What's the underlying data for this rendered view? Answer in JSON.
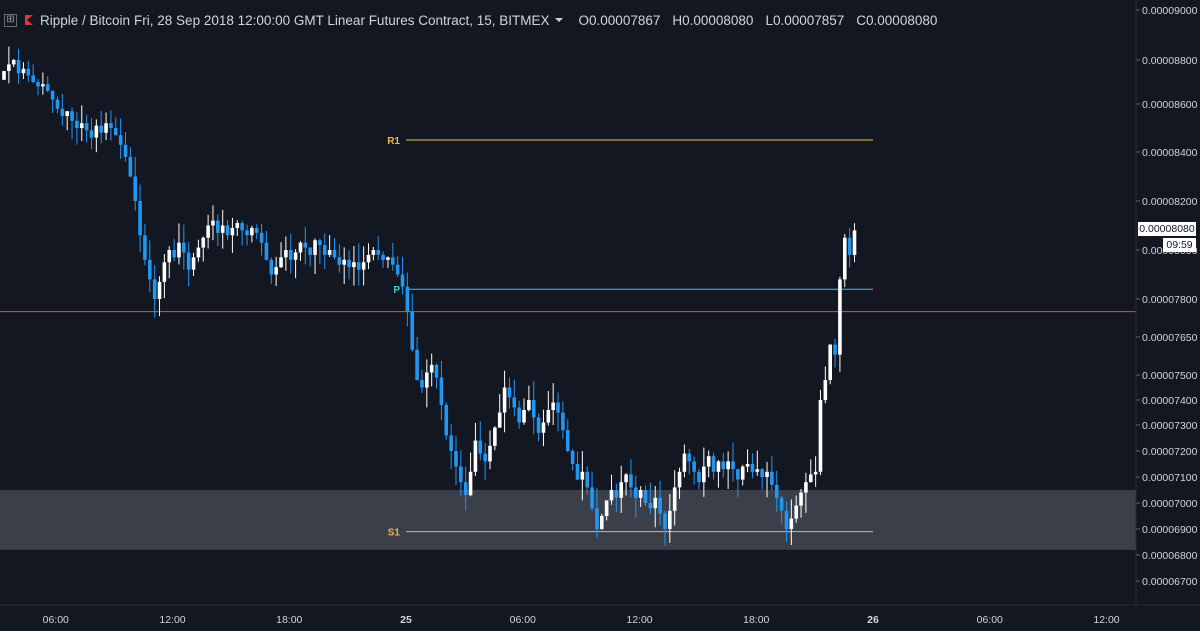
{
  "header": {
    "symbol": "Ripple / Bitcoin",
    "info": "Fri, 28 Sep 2018 12:00:00 GMT Linear Futures Contract, 15, BITMEX",
    "ohlc": [
      {
        "label": "O",
        "value": "0.00007867"
      },
      {
        "label": "H",
        "value": "0.00008080"
      },
      {
        "label": "L",
        "value": "0.00007857"
      },
      {
        "label": "C",
        "value": "0.00008080"
      }
    ]
  },
  "price_tag": {
    "value": "0.00008080",
    "timer": "09:59"
  },
  "colors": {
    "background": "#131722",
    "up": "#ffffff",
    "down": "#2196f3",
    "resistance": "#f0b847",
    "pivot": "#35d0c9",
    "support": "#f0b847",
    "horizontal_line": "#e0532f",
    "zone": "#434651"
  },
  "chart_data": {
    "type": "candlestick",
    "title": "",
    "xlabel": "",
    "ylabel": "",
    "y_axis_ticks": [
      {
        "value": 9e-05,
        "label": "0.00009000"
      },
      {
        "value": 8.8e-05,
        "label": "0.00008800"
      },
      {
        "value": 8.6e-05,
        "label": "0.00008600"
      },
      {
        "value": 8.4e-05,
        "label": "0.00008400"
      },
      {
        "value": 8.2e-05,
        "label": "0.00008200"
      },
      {
        "value": 8e-05,
        "label": "0.00008000"
      },
      {
        "value": 7.8e-05,
        "label": "0.00007800"
      },
      {
        "value": 7.65e-05,
        "label": "0.00007650"
      },
      {
        "value": 7.5e-05,
        "label": "0.00007500"
      },
      {
        "value": 7.4e-05,
        "label": "0.00007400"
      },
      {
        "value": 7.3e-05,
        "label": "0.00007300"
      },
      {
        "value": 7.2e-05,
        "label": "0.00007200"
      },
      {
        "value": 7.1e-05,
        "label": "0.00007100"
      },
      {
        "value": 7e-05,
        "label": "0.00007000"
      },
      {
        "value": 6.9e-05,
        "label": "0.00006900"
      },
      {
        "value": 6.8e-05,
        "label": "0.00006800"
      },
      {
        "value": 6.7e-05,
        "label": "0.00006700"
      }
    ],
    "x_axis_ticks": [
      {
        "hours": 6,
        "label": "06:00",
        "bold": false
      },
      {
        "hours": 12,
        "label": "12:00",
        "bold": false
      },
      {
        "hours": 18,
        "label": "18:00",
        "bold": false
      },
      {
        "hours": 24,
        "label": "25",
        "bold": true
      },
      {
        "hours": 30,
        "label": "06:00",
        "bold": false
      },
      {
        "hours": 36,
        "label": "12:00",
        "bold": false
      },
      {
        "hours": 42,
        "label": "18:00",
        "bold": false
      },
      {
        "hours": 48,
        "label": "26",
        "bold": true
      },
      {
        "hours": 54,
        "label": "06:00",
        "bold": false
      },
      {
        "hours": 60,
        "label": "12:00",
        "bold": false
      }
    ],
    "pivots": [
      {
        "label": "R1",
        "value": 8.45e-05,
        "color": "#f0b847",
        "x_start": 24,
        "x_end": 48
      },
      {
        "label": "P",
        "value": 7.84e-05,
        "color": "#35d0c9",
        "x_start": 24,
        "x_end": 48
      },
      {
        "label": "S1",
        "value": 6.89e-05,
        "color": "#f0b847",
        "x_start": 24,
        "x_end": 48
      }
    ],
    "horizontal_line": {
      "value": 7.75e-05
    },
    "support_zone": {
      "from": 6.82e-05,
      "to": 7.05e-05
    },
    "candles_closes": [
      8.75e-05,
      8.78e-05,
      8.8e-05,
      8.74e-05,
      8.76e-05,
      8.73e-05,
      8.7e-05,
      8.68e-05,
      8.69e-05,
      8.66e-05,
      8.62e-05,
      8.58e-05,
      8.55e-05,
      8.57e-05,
      8.53e-05,
      8.5e-05,
      8.52e-05,
      8.49e-05,
      8.46e-05,
      8.51e-05,
      8.48e-05,
      8.52e-05,
      8.5e-05,
      8.47e-05,
      8.43e-05,
      8.38e-05,
      8.3e-05,
      8.2e-05,
      8.06e-05,
      7.96e-05,
      7.88e-05,
      7.8e-05,
      7.87e-05,
      7.95e-05,
      8e-05,
      7.97e-05,
      8.03e-05,
      7.99e-05,
      7.92e-05,
      7.97e-05,
      8.01e-05,
      8.05e-05,
      8.1e-05,
      8.12e-05,
      8.07e-05,
      8.1e-05,
      8.06e-05,
      8.09e-05,
      8.11e-05,
      8.08e-05,
      8.06e-05,
      8.09e-05,
      8.07e-05,
      8.03e-05,
      7.96e-05,
      7.9e-05,
      7.93e-05,
      7.97e-05,
      8e-05,
      7.96e-05,
      7.99e-05,
      8.03e-05,
      8.01e-05,
      7.98e-05,
      8.04e-05,
      8.02e-05,
      7.98e-05,
      8e-05,
      7.97e-05,
      7.94e-05,
      7.96e-05,
      7.93e-05,
      7.95e-05,
      7.92e-05,
      7.95e-05,
      7.98e-05,
      8e-05,
      7.98e-05,
      7.96e-05,
      7.97e-05,
      7.94e-05,
      7.9e-05,
      7.85e-05,
      7.75e-05,
      7.6e-05,
      7.48e-05,
      7.45e-05,
      7.51e-05,
      7.54e-05,
      7.49e-05,
      7.38e-05,
      7.26e-05,
      7.2e-05,
      7.14e-05,
      7.08e-05,
      7.03e-05,
      7.12e-05,
      7.24e-05,
      7.19e-05,
      7.16e-05,
      7.22e-05,
      7.29e-05,
      7.35e-05,
      7.45e-05,
      7.41e-05,
      7.37e-05,
      7.31e-05,
      7.36e-05,
      7.4e-05,
      7.33e-05,
      7.27e-05,
      7.31e-05,
      7.36e-05,
      7.39e-05,
      7.35e-05,
      7.28e-05,
      7.2e-05,
      7.15e-05,
      7.09e-05,
      7.12e-05,
      7.06e-05,
      6.98e-05,
      6.9e-05,
      6.95e-05,
      7.01e-05,
      7.05e-05,
      7.02e-05,
      7.08e-05,
      7.11e-05,
      7.06e-05,
      7.02e-05,
      7.05e-05,
      7e-05,
      6.98e-05,
      7.02e-05,
      6.96e-05,
      6.9e-05,
      6.97e-05,
      7.06e-05,
      7.12e-05,
      7.19e-05,
      7.16e-05,
      7.12e-05,
      7.08e-05,
      7.14e-05,
      7.18e-05,
      7.12e-05,
      7.16e-05,
      7.13e-05,
      7.16e-05,
      7.13e-05,
      7.09e-05,
      7.14e-05,
      7.15e-05,
      7.12e-05,
      7.13e-05,
      7.1e-05,
      7.12e-05,
      7.07e-05,
      7.02e-05,
      6.97e-05,
      6.9e-05,
      6.94e-05,
      6.99e-05,
      7.04e-05,
      7.08e-05,
      7.11e-05,
      7.12e-05,
      7.4e-05,
      7.48e-05,
      7.62e-05,
      7.58e-05,
      7.88e-05,
      8.05e-05,
      7.98e-05,
      8.08e-05
    ]
  }
}
